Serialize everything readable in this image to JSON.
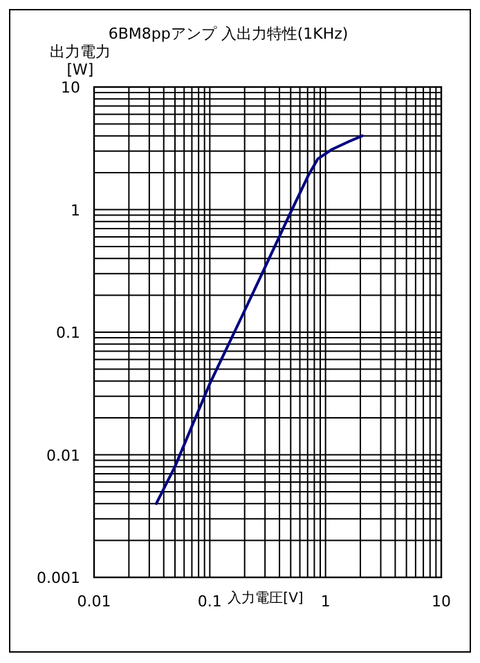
{
  "chart_data": {
    "type": "line",
    "title": "6BM8ppアンプ 入出力特性(1KHz)",
    "ylabel": "出力電力 [W]",
    "xlabel": "入力電圧[V]",
    "log": "xy",
    "grid": true,
    "marker": "none",
    "line_style": "solid",
    "xlim": [
      0.01,
      10
    ],
    "ylim": [
      0.001,
      10
    ],
    "xticks": [
      0.01,
      0.1,
      1,
      10
    ],
    "yticks": [
      0.001,
      0.01,
      0.1,
      1,
      10
    ],
    "series": [
      {
        "color": "#000080",
        "x": [
          0.0345,
          0.05,
          0.1,
          0.2,
          0.287,
          0.5,
          0.71,
          0.86,
          1.14,
          1.6,
          2.08
        ],
        "values": [
          0.004,
          0.008,
          0.038,
          0.15,
          0.31,
          0.95,
          1.9,
          2.6,
          3.1,
          3.6,
          4.0
        ]
      }
    ]
  }
}
